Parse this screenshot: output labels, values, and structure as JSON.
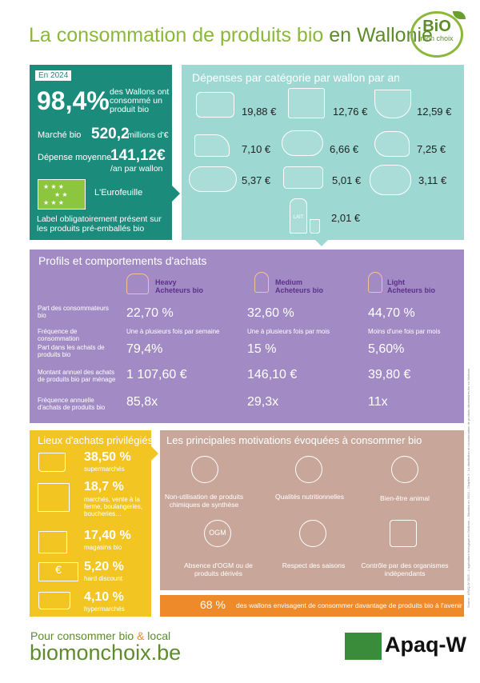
{
  "header": {
    "title_main": "La consommation de produits bio",
    "title_rest": "en Wallonie",
    "logo_bio": "BiO",
    "logo_sub": "mon choix"
  },
  "green": {
    "badge": "En 2024",
    "big_pct": "98,4%",
    "pct_desc": "des Wallons ont consommé un produit bio",
    "market_label": "Marché bio",
    "market_value": "520,2",
    "market_unit": "millions d'€",
    "spend_label": "Dépense moyenne",
    "spend_value": "141,12€",
    "spend_unit": "/an par wallon",
    "eurofeuille": "L'Eurofeuille",
    "note": "Label obligatoirement présent sur les produits pré-emballés bio"
  },
  "spending": {
    "title": "Dépenses par catégorie par wallon par an",
    "items": [
      {
        "icon": "meat-icon",
        "price": "19,88 €"
      },
      {
        "icon": "vegetables-crate-icon",
        "price": "12,76 €"
      },
      {
        "icon": "fruit-basket-icon",
        "price": "12,59 €"
      },
      {
        "icon": "cheese-icon",
        "price": "7,10 €"
      },
      {
        "icon": "charcuterie-icon",
        "price": "6,66 €"
      },
      {
        "icon": "poultry-icon",
        "price": "7,25 €"
      },
      {
        "icon": "bread-icon",
        "price": "5,37 €"
      },
      {
        "icon": "eggs-icon",
        "price": "5,01 €"
      },
      {
        "icon": "potatoes-icon",
        "price": "3,11 €"
      },
      {
        "icon": "milk-icon",
        "price": "2,01 €"
      }
    ],
    "milk_label": "LAIT"
  },
  "profiles": {
    "title": "Profils et comportements d'achats",
    "buyers": [
      {
        "label_1": "Heavy",
        "label_2": "Acheteurs bio"
      },
      {
        "label_1": "Medium",
        "label_2": "Acheteurs bio"
      },
      {
        "label_1": "Light",
        "label_2": "Acheteurs bio"
      }
    ],
    "rows": [
      {
        "label": "Part des consommateurs bio",
        "values": [
          "22,70 %",
          "32,60 %",
          "44,70 %"
        ]
      },
      {
        "label": "Fréquence de consommation",
        "values": [
          "Une à plusieurs fois par semaine",
          "Une à plusieurs fois par mois",
          "Moins d'une fois par mois"
        ]
      },
      {
        "label": "Part dans les achats de produits bio",
        "values": [
          "79,4%",
          "15 %",
          "5,60%"
        ]
      },
      {
        "label": "Montant annuel des achats de produits bio par ménage",
        "values": [
          "1 107,60 €",
          "146,10 €",
          "39,80 €"
        ]
      },
      {
        "label": "Fréquence annuelle d'achats de produits bio",
        "values": [
          "85,8x",
          "29,3x",
          "11x"
        ]
      }
    ]
  },
  "places": {
    "title": "Lieux d'achats privilégiés",
    "items": [
      {
        "icon": "cart-icon",
        "pct": "38,50 %",
        "label": "supermarchés"
      },
      {
        "icon": "market-stall-icon",
        "pct": "18,7 %",
        "label": "marchés, vente à la ferme, boulangeries, boucheries…"
      },
      {
        "icon": "shop-icon",
        "pct": "17,40 %",
        "label": "magasins bio"
      },
      {
        "icon": "euro-bill-icon",
        "pct": "5,20 %",
        "label": "hard discount"
      },
      {
        "icon": "hypermarket-cart-icon",
        "pct": "4,10 %",
        "label": "hypermarchés"
      }
    ]
  },
  "motivations": {
    "title": "Les principales motivations évoquées à consommer bio",
    "items": [
      {
        "icon": "no-chemicals-icon",
        "label": "Non-utilisation de produits chimiques de synthèse"
      },
      {
        "icon": "nutrition-icon",
        "label": "Qualités nutritionnelles"
      },
      {
        "icon": "cow-icon",
        "label": "Bien-être animal"
      },
      {
        "icon": "ogm-icon",
        "icon_text": "OGM",
        "label": "Absence d'OGM ou de produits dérivés"
      },
      {
        "icon": "seasons-icon",
        "label": "Respect des saisons"
      },
      {
        "icon": "inspection-icon",
        "label": "Contrôle par des organismes indépendants"
      }
    ],
    "bottom_pct": "68 %",
    "bottom_text": "des wallons envisagent de consommer davantage de produits bio à l'avenir"
  },
  "side_note": "Source : APAQ-W 2025 – L'agriculture biologique en Wallonie – Situation en 2024 – Chapitre 3 : La distribution et consommation de produits alimentaires bio en Wallonie",
  "footer": {
    "line1_a": "Pour consommer bio",
    "line1_amp": "&",
    "line1_b": "local",
    "site": "biomonchoix.be",
    "brand": "Apaq-W"
  },
  "colors": {
    "green": "#1b8c7c",
    "teal": "#9dd8d2",
    "purple": "#a28bc5",
    "yellow": "#f3c522",
    "brown": "#c8a79a",
    "orange": "#ee8a2a",
    "title_green": "#5d8c2b"
  }
}
